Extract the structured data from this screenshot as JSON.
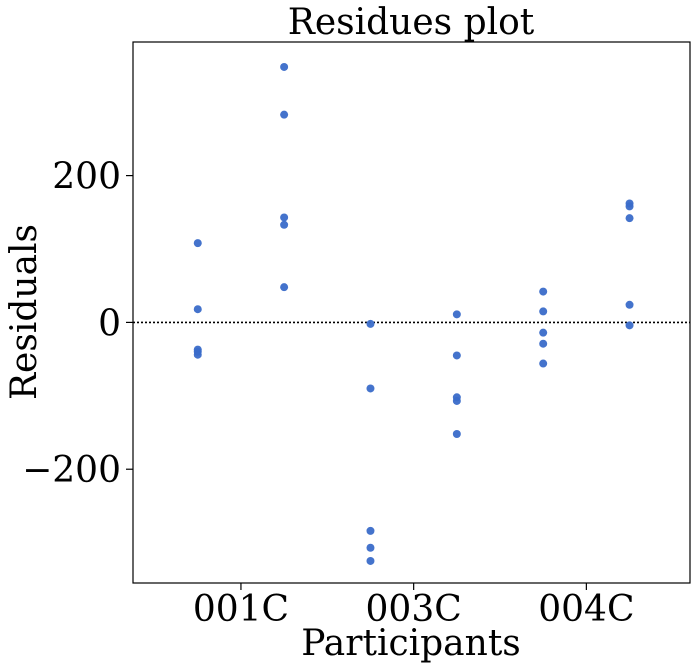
{
  "chart_data": {
    "type": "scatter",
    "title": "Residues plot",
    "xlabel": "Participants",
    "ylabel": "Residuals",
    "xticks": [
      "001C",
      "003C",
      "004C"
    ],
    "yticks": [
      "200",
      "0",
      "−200"
    ],
    "ylim": [
      -355,
      382
    ],
    "xlim": [
      0.25,
      6.7
    ],
    "grid": false,
    "point_color": "#3a6bc9",
    "reference_line": {
      "y": 0,
      "style": "dotted",
      "color": "#000000"
    },
    "series": [
      {
        "x": 1,
        "values": [
          108,
          18,
          -37,
          -40,
          -44
        ]
      },
      {
        "x": 2,
        "values": [
          348,
          283,
          143,
          133,
          48
        ]
      },
      {
        "x": 3,
        "values": [
          -2,
          -90,
          -284,
          -307,
          -325
        ]
      },
      {
        "x": 4,
        "values": [
          11,
          -45,
          -102,
          -107,
          -152
        ]
      },
      {
        "x": 5,
        "values": [
          42,
          15,
          -14,
          -29,
          -56
        ]
      },
      {
        "x": 6,
        "values": [
          162,
          158,
          142,
          24,
          -4
        ]
      }
    ]
  }
}
